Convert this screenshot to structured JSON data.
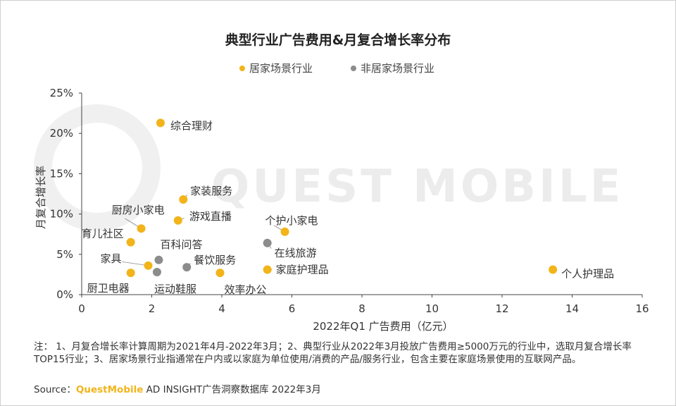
{
  "title": "典型行业广告费用&月复合增长率分布",
  "legend": {
    "home": {
      "label": "居家场景行业",
      "color": "#f2b41a"
    },
    "nonhome": {
      "label": "非居家场景行业",
      "color": "#8c8c8c"
    }
  },
  "chart_data": {
    "type": "scatter",
    "xlabel": "2022年Q1 广告费用（亿元）",
    "ylabel": "月复合增长率",
    "xlim": [
      0,
      16
    ],
    "ylim": [
      0,
      25
    ],
    "xticks": [
      "0",
      "2",
      "4",
      "6",
      "8",
      "10",
      "12",
      "14",
      "16"
    ],
    "yticks": [
      "0%",
      "5%",
      "10%",
      "15%",
      "20%",
      "25%"
    ],
    "grid": false,
    "legend_position": "top",
    "series": [
      {
        "name": "居家场景行业",
        "color": "#f2b41a",
        "points": [
          {
            "label": "家装服务",
            "x": 2.9,
            "y": 11.8
          },
          {
            "label": "游戏直播",
            "x": 2.75,
            "y": 9.2
          },
          {
            "label": "厨房小家电",
            "x": 1.7,
            "y": 8.2
          },
          {
            "label": "育儿社区",
            "x": 1.4,
            "y": 6.5
          },
          {
            "label": "家具",
            "x": 1.9,
            "y": 3.6
          },
          {
            "label": "厨卫电器",
            "x": 1.4,
            "y": 2.7
          },
          {
            "label": "效率办公",
            "x": 3.95,
            "y": 2.7
          },
          {
            "label": "个护小家电",
            "x": 5.8,
            "y": 7.8
          },
          {
            "label": "家庭护理品",
            "x": 5.3,
            "y": 3.1
          },
          {
            "label": "个人护理品",
            "x": 13.45,
            "y": 3.1
          },
          {
            "label": "综合理财",
            "x": 2.25,
            "y": 21.3
          }
        ]
      },
      {
        "name": "非居家场景行业",
        "color": "#8c8c8c",
        "points": [
          {
            "label": "百科问答",
            "x": 2.2,
            "y": 4.3
          },
          {
            "label": "运动鞋服",
            "x": 2.15,
            "y": 2.8
          },
          {
            "label": "餐饮服务",
            "x": 3.0,
            "y": 3.4
          },
          {
            "label": "在线旅游",
            "x": 5.3,
            "y": 6.4
          }
        ]
      }
    ]
  },
  "watermark": "QUEST MOBILE",
  "notes": "注： 1、月复合增长率计算周期为2021年4月-2022年3月；2、典型行业从2022年3月投放广告费用≥5000万元的行业中，选取月复合增长率TOP15行业；3、居家场景行业指通常在户内或以家庭为单位使用/消费的产品/服务行业，包含主要在家庭场景使用的互联网产品。",
  "source": {
    "prefix": "Source：",
    "brand": "QuestMobile",
    "rest": " AD INSIGHT广告洞察数据库 2022年3月"
  }
}
